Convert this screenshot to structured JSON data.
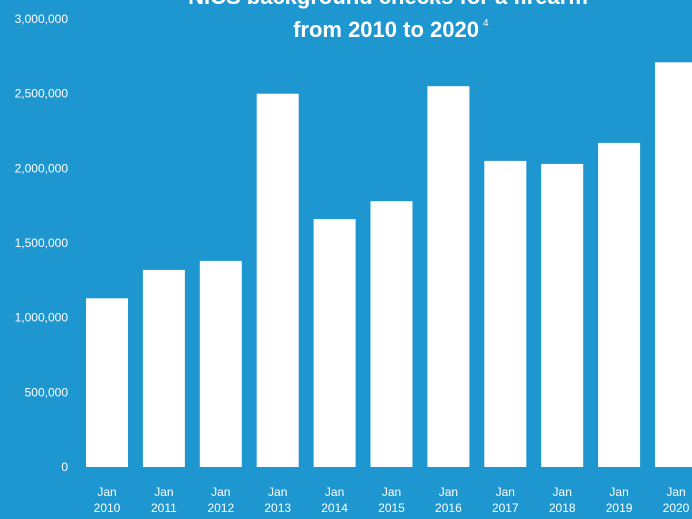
{
  "colors": {
    "background": "#1e96d0",
    "bar": "#ffffff",
    "text": "#ffffff"
  },
  "chart_data": {
    "type": "bar",
    "title": "NICS background checks for a firearm",
    "subtitle": "from 2010 to 2020",
    "subtitle_note": "4",
    "xlabel": "",
    "ylabel": "",
    "ylim": [
      0,
      3000000
    ],
    "y_ticks": [
      0,
      500000,
      1000000,
      1500000,
      2000000,
      2500000,
      3000000
    ],
    "y_tick_labels": [
      "0",
      "500,000",
      "1,000,000",
      "1,500,000",
      "2,000,000",
      "2,500,000",
      "3,000,000"
    ],
    "grid": false,
    "legend": "none",
    "categories": [
      [
        "Jan",
        "2010"
      ],
      [
        "Jan",
        "2011"
      ],
      [
        "Jan",
        "2012"
      ],
      [
        "Jan",
        "2013"
      ],
      [
        "Jan",
        "2014"
      ],
      [
        "Jan",
        "2015"
      ],
      [
        "Jan",
        "2016"
      ],
      [
        "Jan",
        "2017"
      ],
      [
        "Jan",
        "2018"
      ],
      [
        "Jan",
        "2019"
      ],
      [
        "Jan",
        "2020"
      ]
    ],
    "values": [
      1130000,
      1320000,
      1380000,
      2500000,
      1660000,
      1780000,
      2550000,
      2050000,
      2030000,
      2170000,
      2710000
    ]
  }
}
